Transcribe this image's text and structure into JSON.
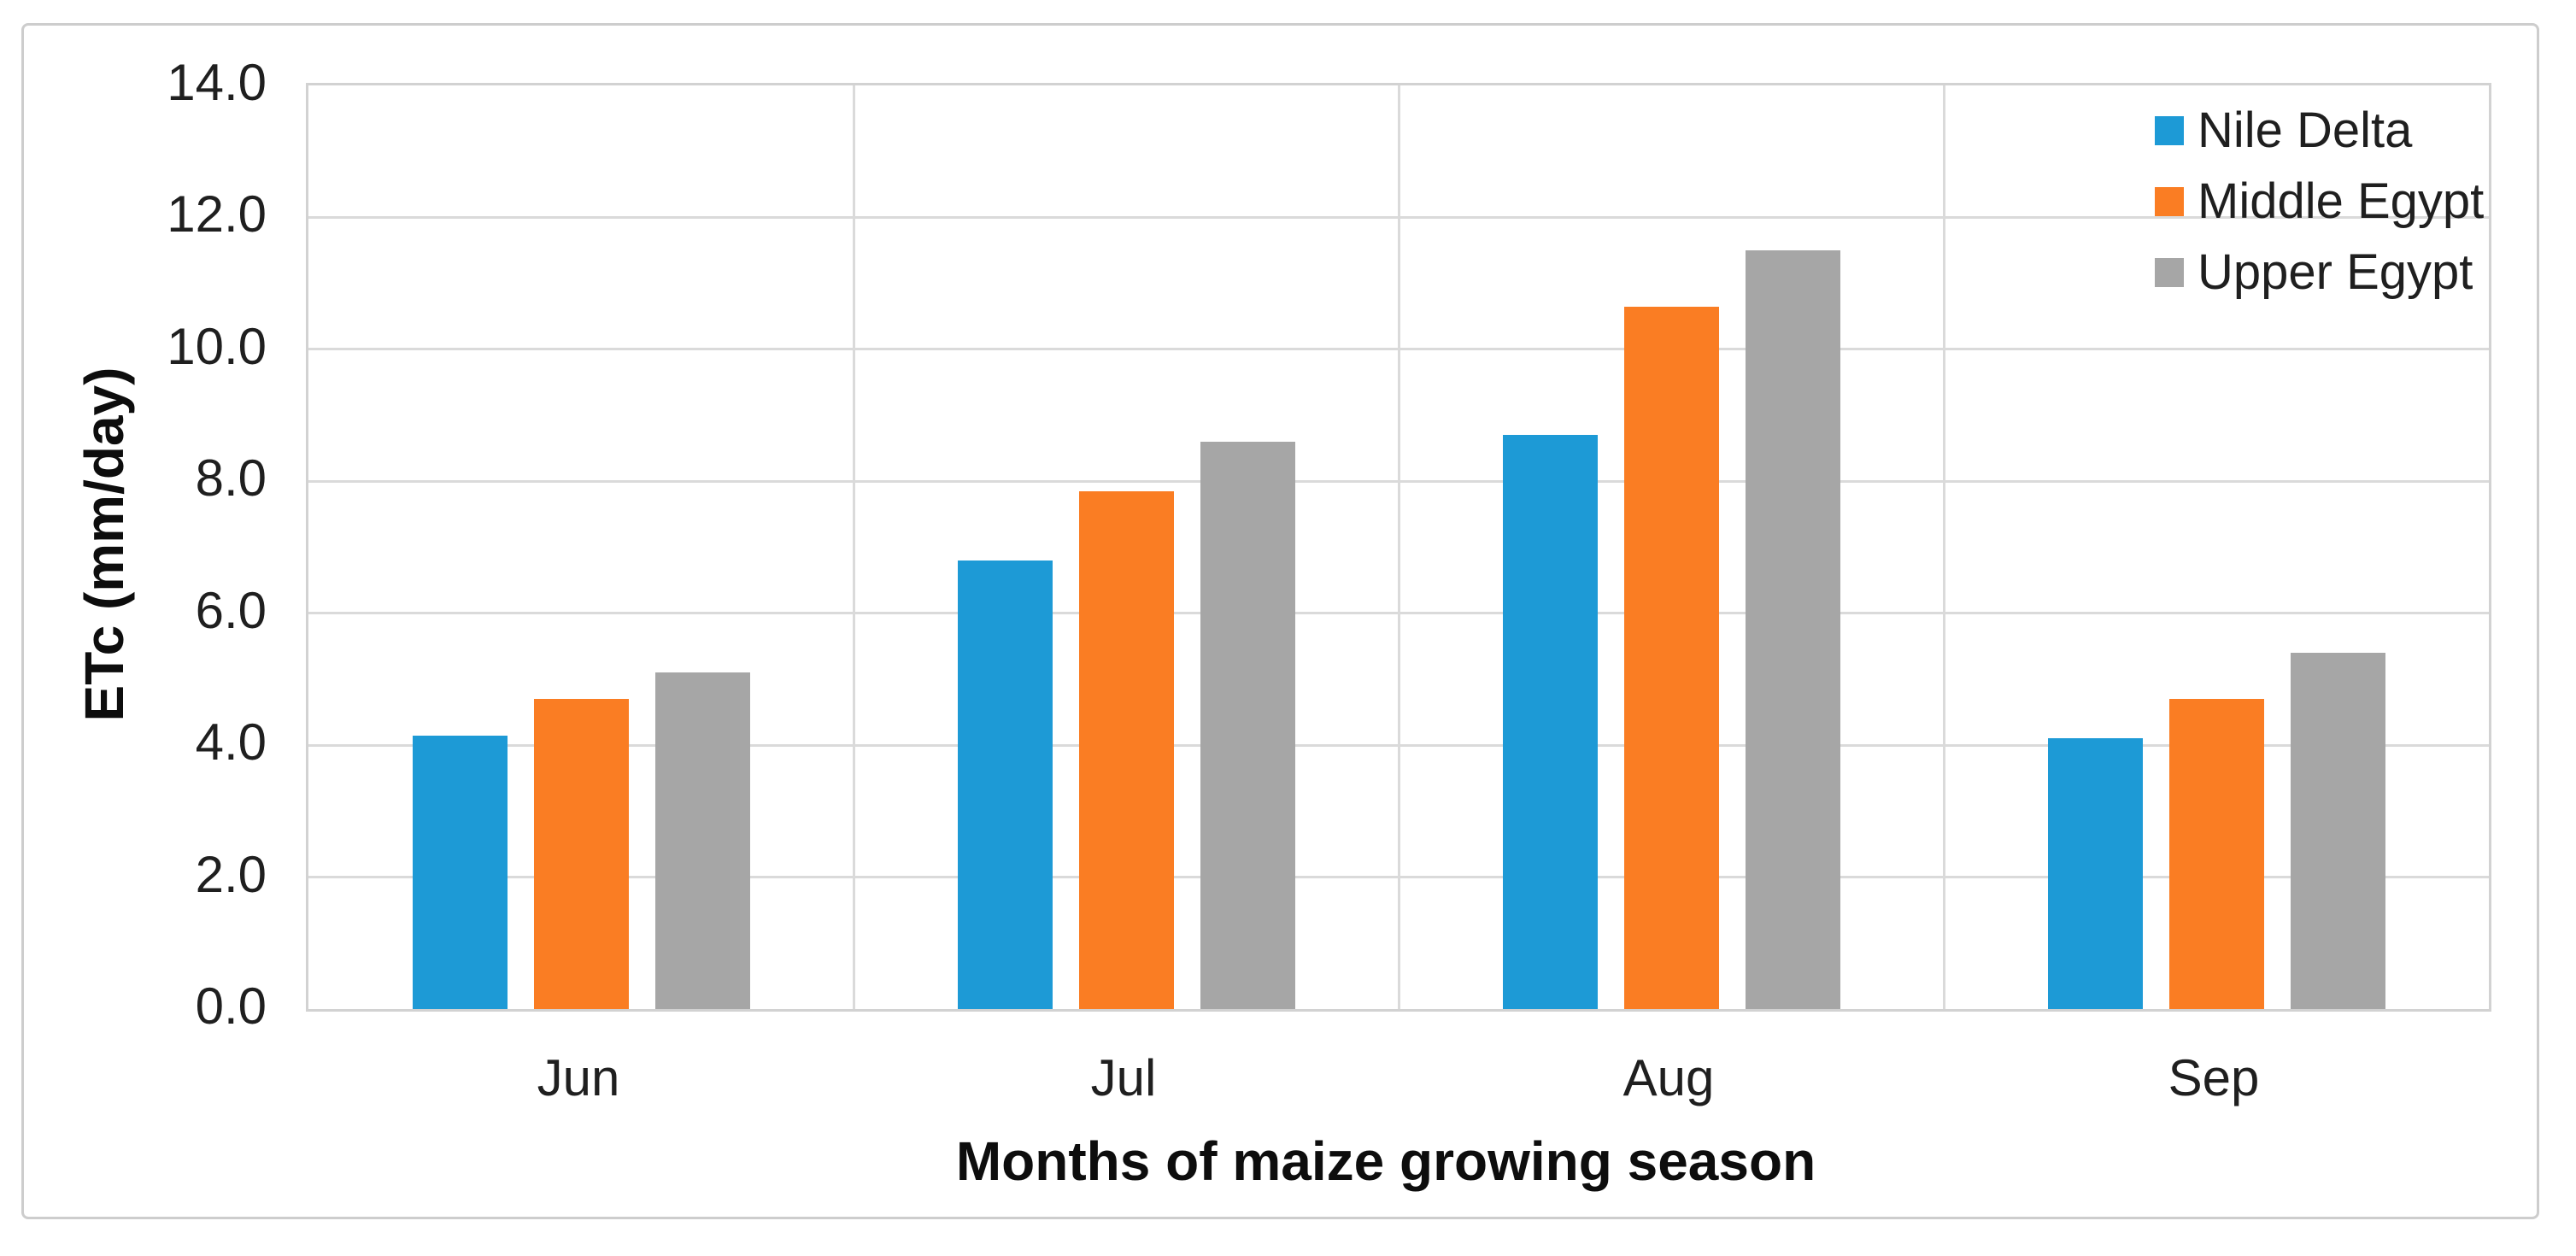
{
  "chart_data": {
    "type": "bar",
    "title": "",
    "xlabel": "Months of maize growing season",
    "ylabel": "ETc (mm/day)",
    "categories": [
      "Jun",
      "Jul",
      "Aug",
      "Sep"
    ],
    "series": [
      {
        "name": "Nile Delta",
        "color": "#1d9ad6",
        "values": [
          4.15,
          6.8,
          8.7,
          4.1
        ]
      },
      {
        "name": "Middle Egypt",
        "color": "#fa7d23",
        "values": [
          4.7,
          7.85,
          10.65,
          4.7
        ]
      },
      {
        "name": "Upper Egypt",
        "color": "#a6a6a6",
        "values": [
          5.1,
          8.6,
          11.5,
          5.4
        ]
      }
    ],
    "ylim": [
      0,
      14
    ],
    "ytick_step": 2,
    "ytick_labels": [
      "0.0",
      "2.0",
      "4.0",
      "6.0",
      "8.0",
      "10.0",
      "12.0",
      "14.0"
    ],
    "grid": {
      "horizontal": true,
      "vertical": true,
      "color": "#dadada"
    },
    "legend_position": "top-right"
  }
}
